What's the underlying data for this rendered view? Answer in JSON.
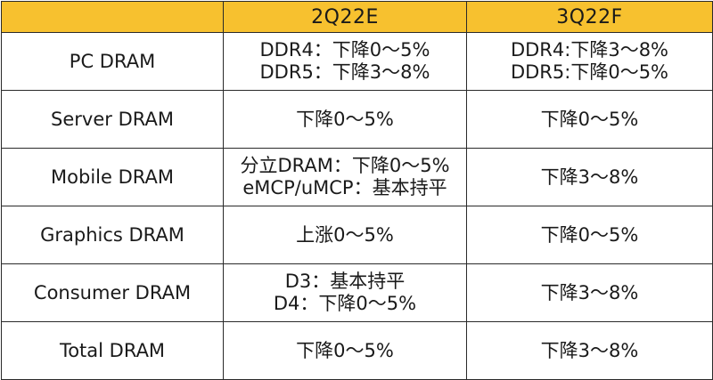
{
  "header": {
    "col1": "",
    "col2": "2Q22E",
    "col3": "3Q22F"
  },
  "rows": [
    {
      "label": "PC DRAM",
      "q2": [
        "DDR4：下降0～5%",
        "DDR5：下降3～8%"
      ],
      "q3": [
        "DDR4:下降3～8%",
        "DDR5:下降0～5%"
      ]
    },
    {
      "label": "Server DRAM",
      "q2": [
        "下降0～5%"
      ],
      "q3": [
        "下降0～5%"
      ]
    },
    {
      "label": "Mobile DRAM",
      "q2": [
        "分立DRAM：下降0～5%",
        "eMCP/uMCP：基本持平"
      ],
      "q3": [
        "下降3～8%"
      ]
    },
    {
      "label": "Graphics DRAM",
      "q2": [
        "上涨0～5%"
      ],
      "q3": [
        "下降0～5%"
      ]
    },
    {
      "label": "Consumer DRAM",
      "q2": [
        "D3：基本持平",
        "D4：下降0～5%"
      ],
      "q3": [
        "下降3～8%"
      ]
    },
    {
      "label": "Total DRAM",
      "q2": [
        "下降0～5%"
      ],
      "q3": [
        "下降3～8%"
      ]
    }
  ],
  "colors": {
    "header_bg": "#f7c12f",
    "border": "#2a2a2a",
    "text": "#1a1a1a"
  }
}
